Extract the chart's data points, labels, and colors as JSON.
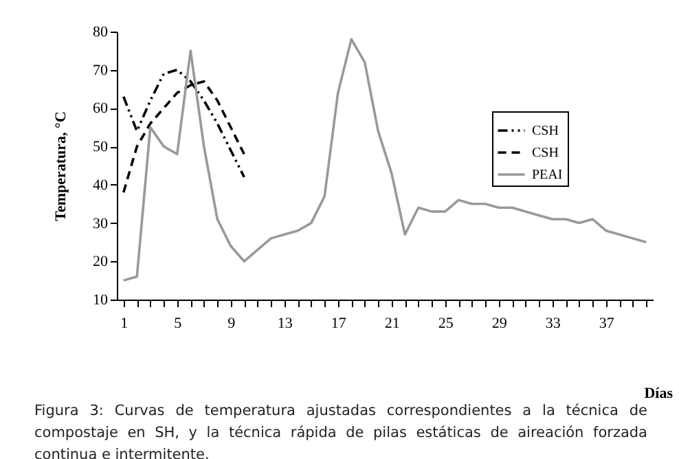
{
  "chart_data": {
    "type": "line",
    "xlabel": "Días",
    "ylabel": "Temperatura, °C",
    "x": [
      1,
      2,
      3,
      4,
      5,
      6,
      7,
      8,
      9,
      10,
      11,
      12,
      13,
      14,
      15,
      16,
      17,
      18,
      19,
      20,
      21,
      22,
      23,
      24,
      25,
      26,
      27,
      28,
      29,
      30,
      31,
      32,
      33,
      34,
      35,
      36,
      37,
      38,
      39,
      40
    ],
    "xlim": [
      0.5,
      40.5
    ],
    "xticks": [
      1,
      {
        "value": 2,
        "label": null
      },
      {
        "value": 3,
        "label": null
      },
      {
        "value": 4,
        "label": null
      },
      5,
      {
        "value": 6,
        "label": null
      },
      {
        "value": 7,
        "label": null
      },
      {
        "value": 8,
        "label": null
      },
      9,
      {
        "value": 10,
        "label": null
      },
      {
        "value": 11,
        "label": null
      },
      {
        "value": 12,
        "label": null
      },
      13,
      {
        "value": 14,
        "label": null
      },
      {
        "value": 15,
        "label": null
      },
      {
        "value": 16,
        "label": null
      },
      17,
      {
        "value": 18,
        "label": null
      },
      {
        "value": 19,
        "label": null
      },
      {
        "value": 20,
        "label": null
      },
      21,
      {
        "value": 22,
        "label": null
      },
      {
        "value": 23,
        "label": null
      },
      {
        "value": 24,
        "label": null
      },
      25,
      {
        "value": 26,
        "label": null
      },
      {
        "value": 27,
        "label": null
      },
      {
        "value": 28,
        "label": null
      },
      29,
      {
        "value": 30,
        "label": null
      },
      {
        "value": 31,
        "label": null
      },
      {
        "value": 32,
        "label": null
      },
      33,
      {
        "value": 34,
        "label": null
      },
      {
        "value": 35,
        "label": null
      },
      {
        "value": 36,
        "label": null
      },
      37,
      {
        "value": 38,
        "label": null
      },
      {
        "value": 39,
        "label": null
      },
      {
        "value": 40,
        "label": null
      }
    ],
    "ylim": [
      10,
      80
    ],
    "yticks": [
      10,
      20,
      30,
      40,
      50,
      60,
      70,
      80
    ],
    "grid": false,
    "legend": "right",
    "marker": "none",
    "series": [
      {
        "name": "CSH",
        "color": "#000000",
        "line_style": "dashdot",
        "x": [
          1,
          2,
          3,
          4,
          5,
          6,
          7,
          8,
          9,
          10
        ],
        "values": [
          63,
          54,
          62,
          69,
          70,
          67,
          62,
          56,
          49,
          42
        ]
      },
      {
        "name": "CSH",
        "color": "#000000",
        "line_style": "dashed",
        "x": [
          1,
          2,
          3,
          4,
          5,
          6,
          7,
          8,
          9,
          10
        ],
        "values": [
          38,
          50,
          56,
          60,
          64,
          66,
          67,
          62,
          55,
          48
        ]
      },
      {
        "name": "PEAI",
        "color": "#999999",
        "line_style": "solid",
        "values": [
          15,
          16,
          55,
          50,
          48,
          75,
          50,
          31,
          24,
          20,
          23,
          26,
          27,
          28,
          30,
          37,
          64,
          78,
          72,
          54,
          43,
          27,
          34,
          33,
          33,
          36,
          35,
          35,
          34,
          34,
          33,
          32,
          31,
          31,
          30,
          31,
          28,
          27,
          26,
          25
        ]
      }
    ],
    "annotations": [
      "Figura 3: Curvas de temperatura ajustadas correspondientes a la técnica de compostaje en SH, y la técnica rápida de pilas estáticas de aireación forzada continua e intermitente."
    ]
  }
}
